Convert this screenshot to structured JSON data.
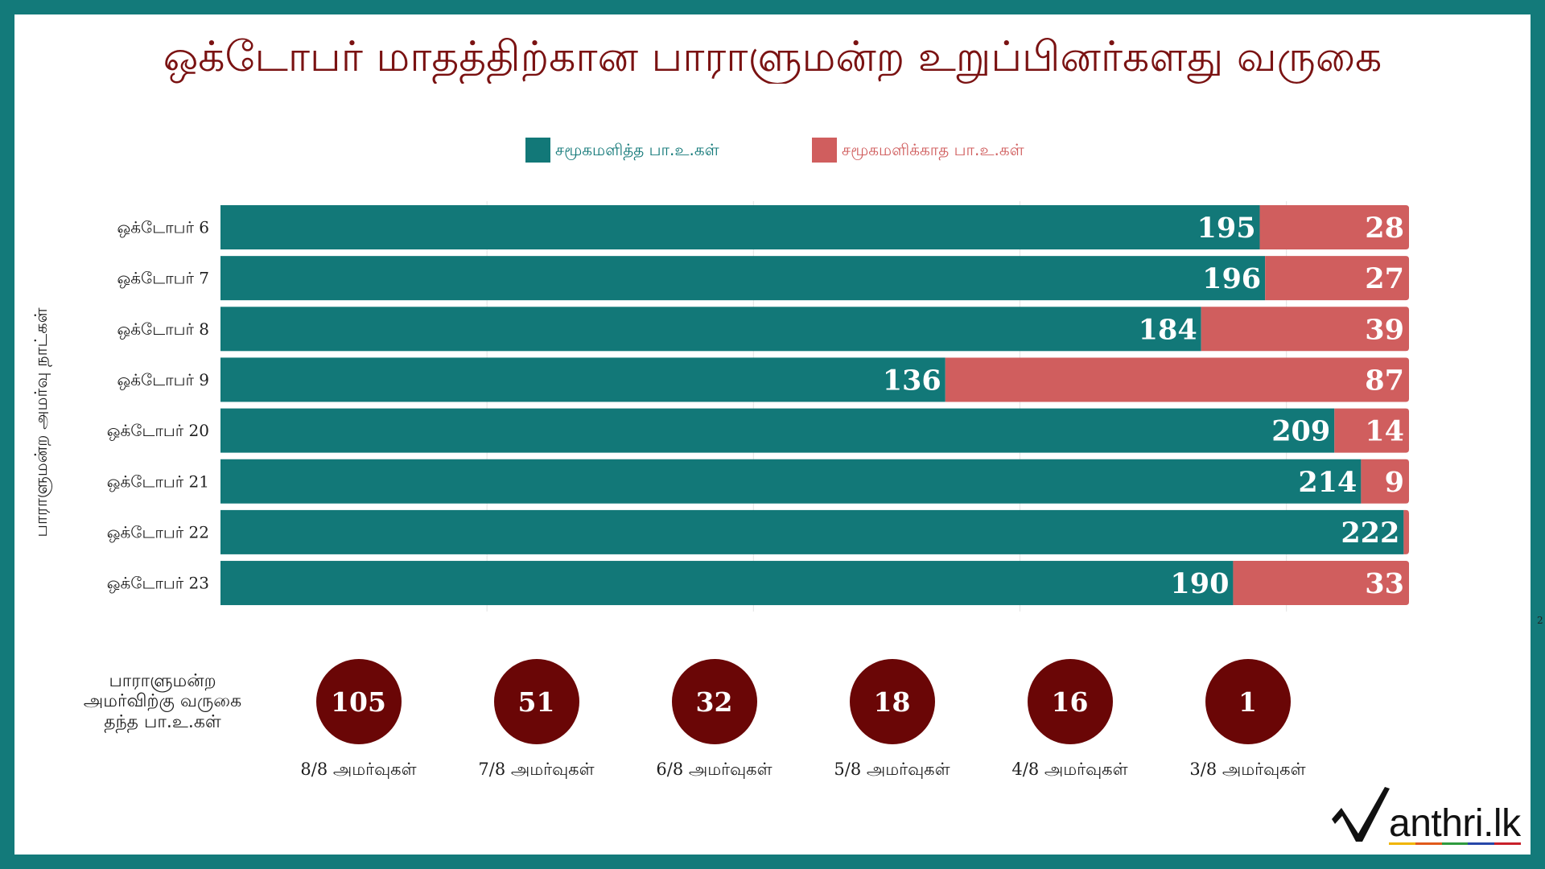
{
  "colors": {
    "frame": "#137a7a",
    "title": "#7a1212",
    "attended": "#127878",
    "absent": "#d05e5e",
    "circle": "#6a0606"
  },
  "chart_data": {
    "type": "bar",
    "orientation": "horizontal",
    "stacked": true,
    "title": "ஒக்டோபர் மாதத்திற்கான பாராளுமன்ற உறுப்பினர்களது வருகை",
    "xlabel": "",
    "ylabel": "பாராளுமன்ற அமர்வு நாட்கள்",
    "categories": [
      "ஒக்டோபர் 6",
      "ஒக்டோபர் 7",
      "ஒக்டோபர் 8",
      "ஒக்டோபர் 9",
      "ஒக்டோபர் 20",
      "ஒக்டோபர் 21",
      "ஒக்டோபர் 22",
      "ஒக்டோபர் 23"
    ],
    "series": [
      {
        "name": "சமூகமளித்த பா.உ.கள்",
        "values": [
          195,
          196,
          184,
          136,
          209,
          214,
          222,
          190
        ]
      },
      {
        "name": "சமூகமளிக்காத பா.உ.கள்",
        "values": [
          28,
          27,
          39,
          87,
          14,
          9,
          1,
          33
        ]
      }
    ],
    "xlim": [
      0,
      223
    ],
    "grid": true,
    "legend_position": "top"
  },
  "attendance_summary": {
    "label_lines": [
      "பாராளுமன்ற",
      "அமர்விற்கு வருகை",
      "தந்த பா.உ.கள்"
    ],
    "items": [
      {
        "count": 105,
        "sessions": "8/8 அமர்வுகள்"
      },
      {
        "count": 51,
        "sessions": "7/8 அமர்வுகள்"
      },
      {
        "count": 32,
        "sessions": "6/8 அமர்வுகள்"
      },
      {
        "count": 18,
        "sessions": "5/8 அமர்வுகள்"
      },
      {
        "count": 16,
        "sessions": "4/8 அமர்வுகள்"
      },
      {
        "count": 1,
        "sessions": "3/8 அமர்வுகள்"
      }
    ]
  },
  "edge_fragment": "2",
  "logo": {
    "text": "anthri.lk"
  }
}
